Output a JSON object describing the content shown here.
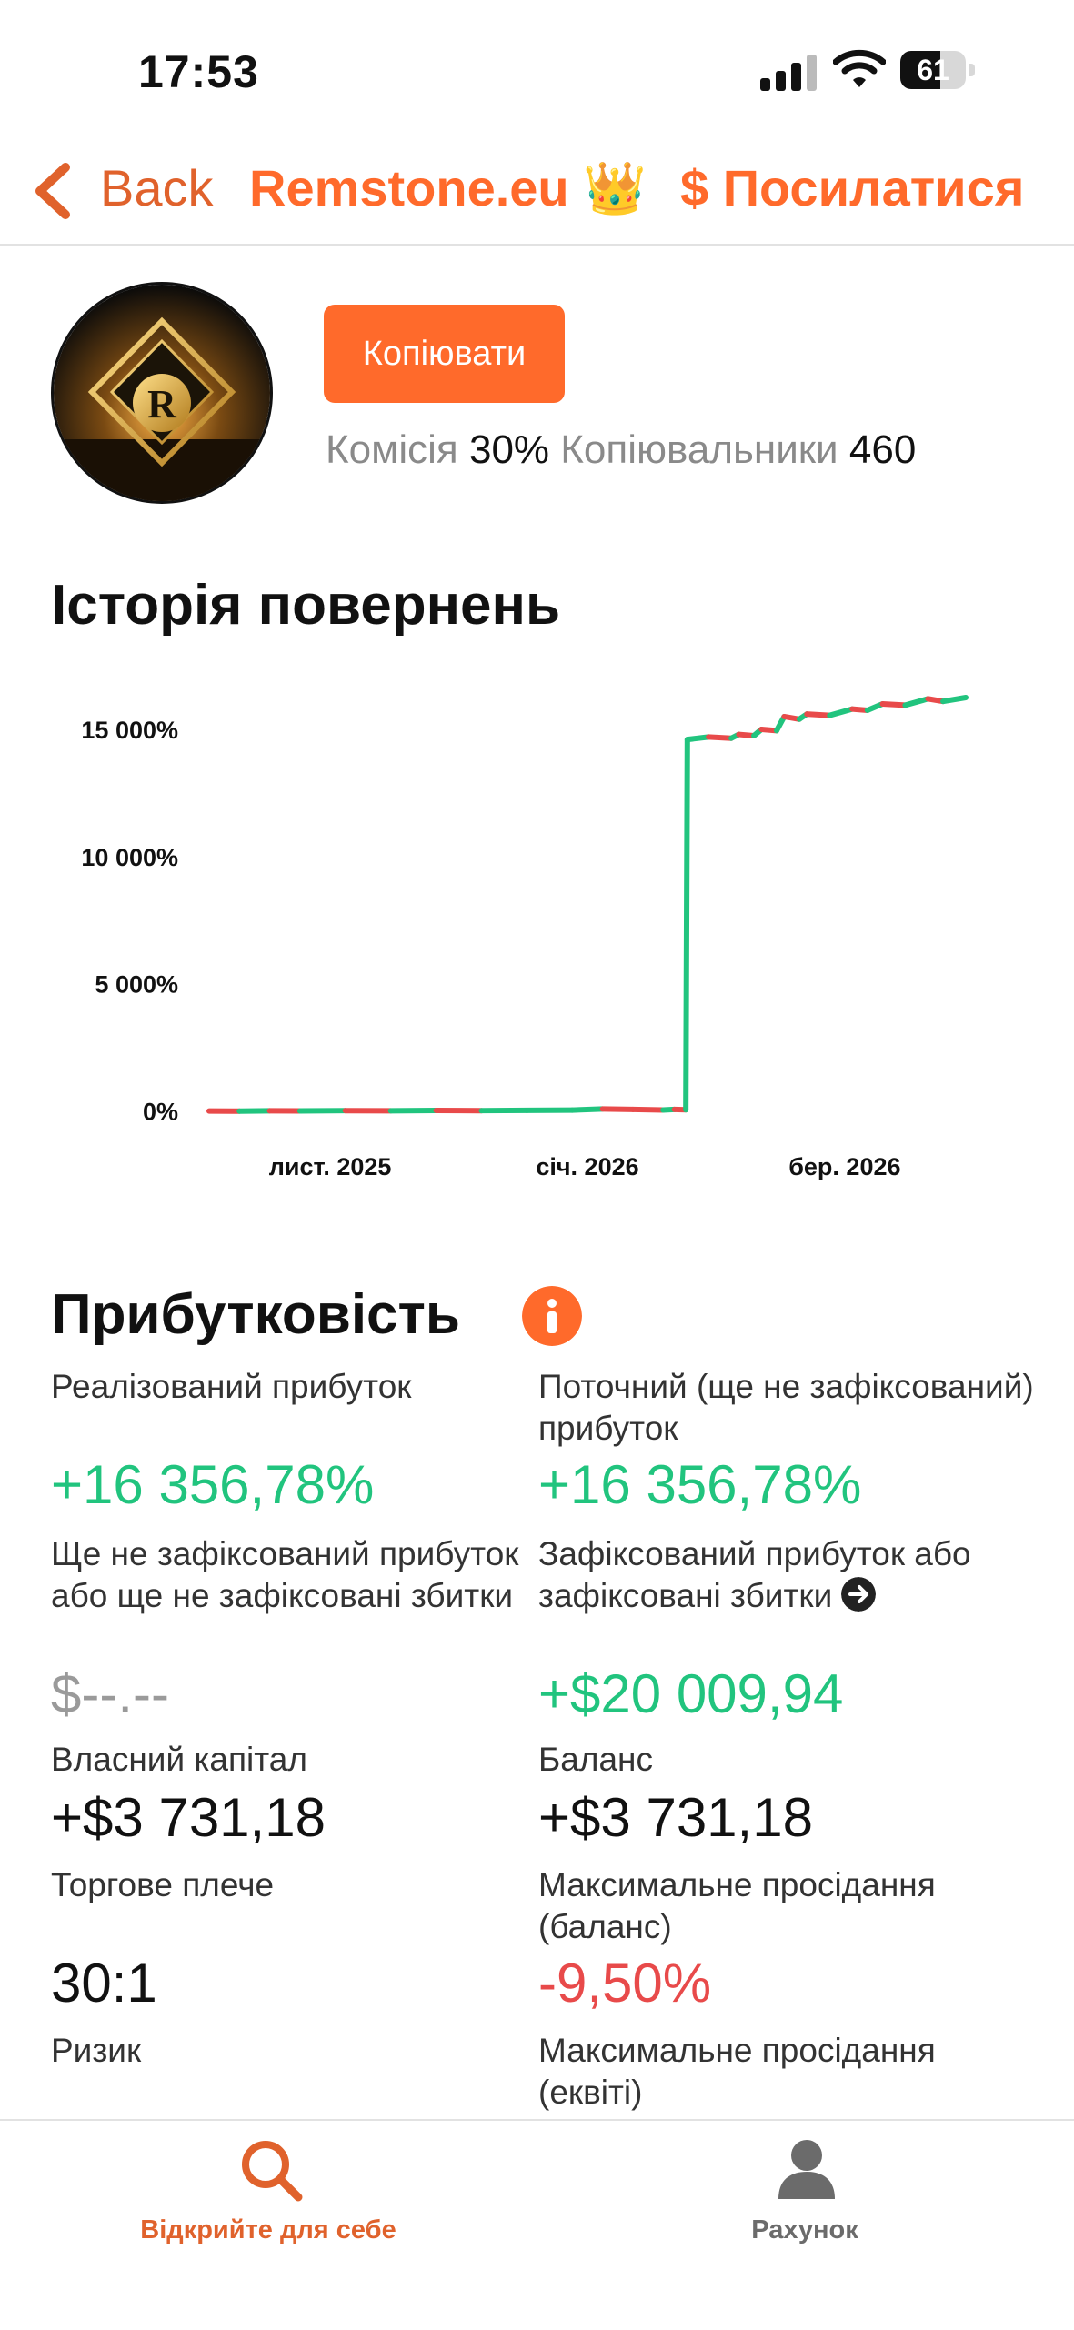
{
  "status_bar": {
    "time": "17:53",
    "battery_level": "61"
  },
  "nav": {
    "back_label": "Back",
    "title": "Remstone.eu 👑",
    "share_label": "$ Посилатися"
  },
  "profile": {
    "avatar_letter": "R",
    "copy_button": "Копіювати",
    "commission_label": "Комісія",
    "commission_value": "30%",
    "copiers_label": "Копіювальники",
    "copiers_value": "460"
  },
  "returns_section": {
    "title": "Історія повернень"
  },
  "chart_data": {
    "type": "line",
    "y_ticks": [
      "15 000%",
      "10 000%",
      "5 000%",
      "0%"
    ],
    "y_tick_values": [
      15000,
      10000,
      5000,
      0
    ],
    "x_ticks": [
      "лист. 2025",
      "січ. 2026",
      "бер. 2026"
    ],
    "x_tick_positions": [
      0.16,
      0.5,
      0.84
    ],
    "ylim": [
      -300,
      16500
    ],
    "xlim": [
      0,
      1
    ],
    "series": [
      {
        "color_up": "#21c47e",
        "color_down": "#e84a4a",
        "x": [
          0.0,
          0.04,
          0.08,
          0.12,
          0.18,
          0.24,
          0.3,
          0.36,
          0.42,
          0.48,
          0.52,
          0.56,
          0.6,
          0.615,
          0.63,
          0.632,
          0.66,
          0.69,
          0.7,
          0.72,
          0.73,
          0.75,
          0.76,
          0.78,
          0.79,
          0.82,
          0.85,
          0.87,
          0.89,
          0.92,
          0.95,
          0.97,
          1.0
        ],
        "y": [
          0,
          -5,
          10,
          5,
          15,
          10,
          20,
          15,
          25,
          35,
          80,
          60,
          40,
          60,
          50,
          14600,
          14700,
          14650,
          14800,
          14750,
          15000,
          14950,
          15500,
          15400,
          15600,
          15550,
          15800,
          15750,
          16000,
          15950,
          16200,
          16100,
          16250
        ]
      }
    ]
  },
  "profitability": {
    "title": "Прибутковість",
    "realized_label": "Реалізований прибуток",
    "realized_value": "+16 356,78%",
    "current_label": "Поточний (ще не зафіксований) прибуток",
    "current_value": "+16 356,78%",
    "unrealized_label": "Ще не зафіксований прибуток або ще не зафіксовані збитки",
    "unrealized_value": "$--.--",
    "fixed_label": "Зафіксований прибуток або зафіксовані збитки",
    "fixed_value": "+$20 009,94",
    "equity_label": "Власний капітал",
    "equity_value": "+$3 731,18",
    "balance_label": "Баланс",
    "balance_value": "+$3 731,18",
    "leverage_label": "Торгове плече",
    "leverage_value": "30:1",
    "max_dd_balance_label": "Максимальне просідання (баланс)",
    "max_dd_balance_value": "-9,50%",
    "risk_label": "Ризик",
    "max_dd_equity_label": "Максимальне просідання (еквіті)"
  },
  "tabbar": {
    "discover_label": "Відкрийте для себе",
    "account_label": "Рахунок"
  },
  "colors": {
    "accent": "#ff6a2b",
    "positive": "#21c47e",
    "negative": "#e84a4a"
  }
}
